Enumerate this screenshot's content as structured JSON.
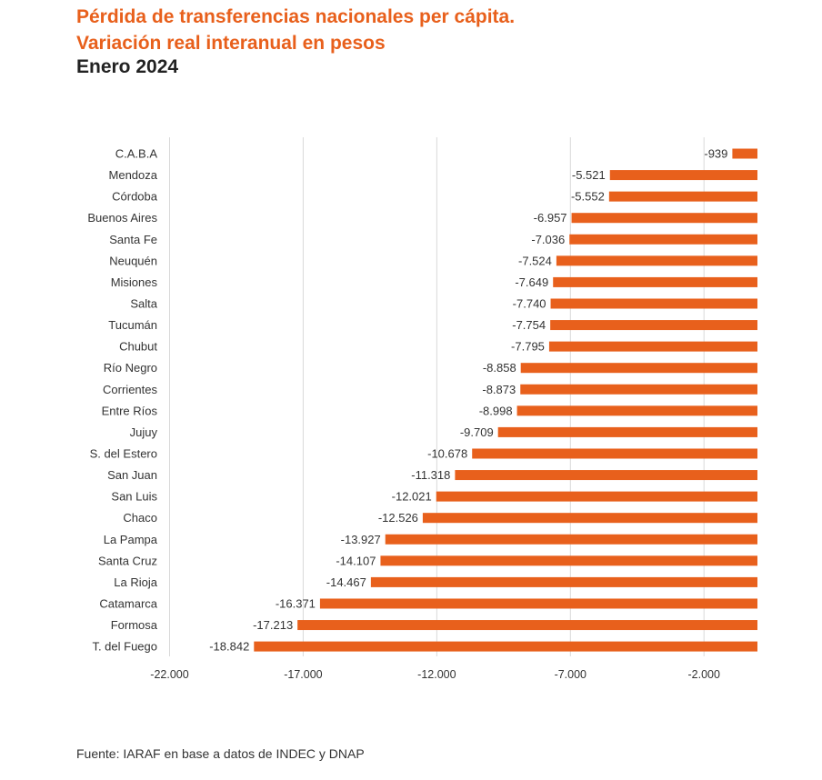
{
  "header": {
    "title_line1": "Pérdida de transferencias nacionales per cápita.",
    "title_line2": "Variación real interanual en pesos",
    "subtitle": "Enero 2024"
  },
  "footer": {
    "source": "Fuente: IARAF en base a datos de INDEC y DNAP"
  },
  "colors": {
    "accent": "#e8601c",
    "text": "#333333",
    "grid": "#d9d9d9"
  },
  "chart_data": {
    "type": "bar",
    "orientation": "horizontal",
    "title": "Pérdida de transferencias nacionales per cápita. Variación real interanual en pesos",
    "subtitle": "Enero 2024",
    "xlabel": "",
    "ylabel": "",
    "xlim": [
      -22000,
      0
    ],
    "ticks": [
      -22000,
      -17000,
      -12000,
      -7000,
      -2000
    ],
    "tick_labels": [
      "-22.000",
      "-17.000",
      "-12.000",
      "-7.000",
      "-2.000"
    ],
    "grid": true,
    "categories": [
      "C.A.B.A",
      "Mendoza",
      "Córdoba",
      "Buenos Aires",
      "Santa Fe",
      "Neuquén",
      "Misiones",
      "Salta",
      "Tucumán",
      "Chubut",
      "Río Negro",
      "Corrientes",
      "Entre Ríos",
      "Jujuy",
      "S. del Estero",
      "San Juan",
      "San Luis",
      "Chaco",
      "La Pampa",
      "Santa Cruz",
      "La Rioja",
      "Catamarca",
      "Formosa",
      "T. del Fuego"
    ],
    "values": [
      -939,
      -5521,
      -5552,
      -6957,
      -7036,
      -7524,
      -7649,
      -7740,
      -7754,
      -7795,
      -8858,
      -8873,
      -8998,
      -9709,
      -10678,
      -11318,
      -12021,
      -12526,
      -13927,
      -14107,
      -14467,
      -16371,
      -17213,
      -18842
    ],
    "value_labels": [
      "-939",
      "-5.521",
      "-5.552",
      "-6.957",
      "-7.036",
      "-7.524",
      "-7.649",
      "-7.740",
      "-7.754",
      "-7.795",
      "-8.858",
      "-8.873",
      "-8.998",
      "-9.709",
      "-10.678",
      "-11.318",
      "-12.021",
      "-12.526",
      "-13.927",
      "-14.107",
      "-14.467",
      "-16.371",
      "-17.213",
      "-18.842"
    ]
  }
}
